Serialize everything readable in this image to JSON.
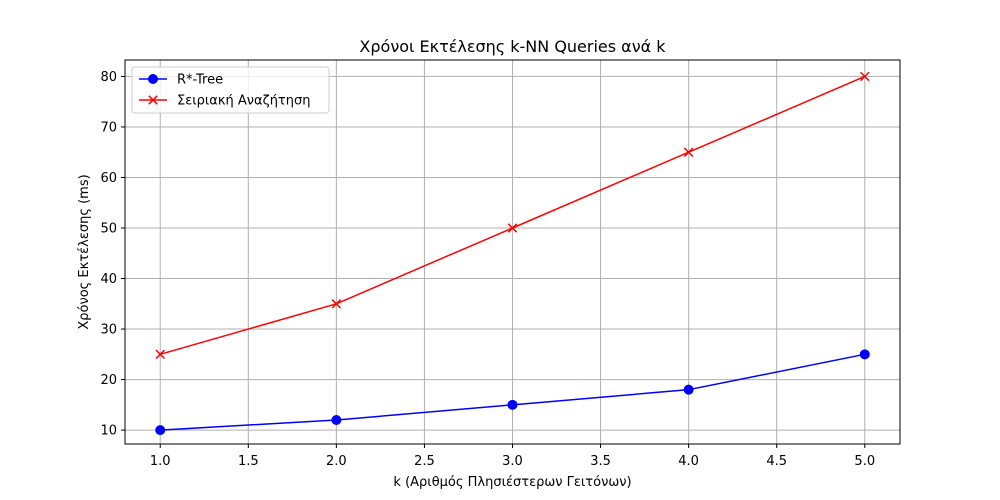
{
  "chart_data": {
    "type": "line",
    "title": "Χρόνοι Εκτέλεσης k-NN Queries ανά k",
    "xlabel": "k (Αριθμός Πλησιέστερων Γειτόνων)",
    "ylabel": "Χρόνος Εκτέλεσης (ms)",
    "xlim": [
      0.8,
      5.2
    ],
    "ylim": [
      7.25,
      83.25
    ],
    "xticks": [
      1.0,
      1.5,
      2.0,
      2.5,
      3.0,
      3.5,
      4.0,
      4.5,
      5.0
    ],
    "xtick_labels": [
      "1.0",
      "1.5",
      "2.0",
      "2.5",
      "3.0",
      "3.5",
      "4.0",
      "4.5",
      "5.0"
    ],
    "yticks": [
      10,
      20,
      30,
      40,
      50,
      60,
      70,
      80
    ],
    "ytick_labels": [
      "10",
      "20",
      "30",
      "40",
      "50",
      "60",
      "70",
      "80"
    ],
    "grid": true,
    "legend_position": "top-left",
    "x": [
      1,
      2,
      3,
      4,
      5
    ],
    "series": [
      {
        "name": "R*-Tree",
        "values": [
          10,
          12,
          15,
          18,
          25
        ],
        "color": "#0000ff",
        "marker": "circle"
      },
      {
        "name": "Σειριακή Αναζήτηση",
        "values": [
          25,
          35,
          50,
          65,
          80
        ],
        "color": "#ff0000",
        "marker": "x"
      }
    ]
  }
}
